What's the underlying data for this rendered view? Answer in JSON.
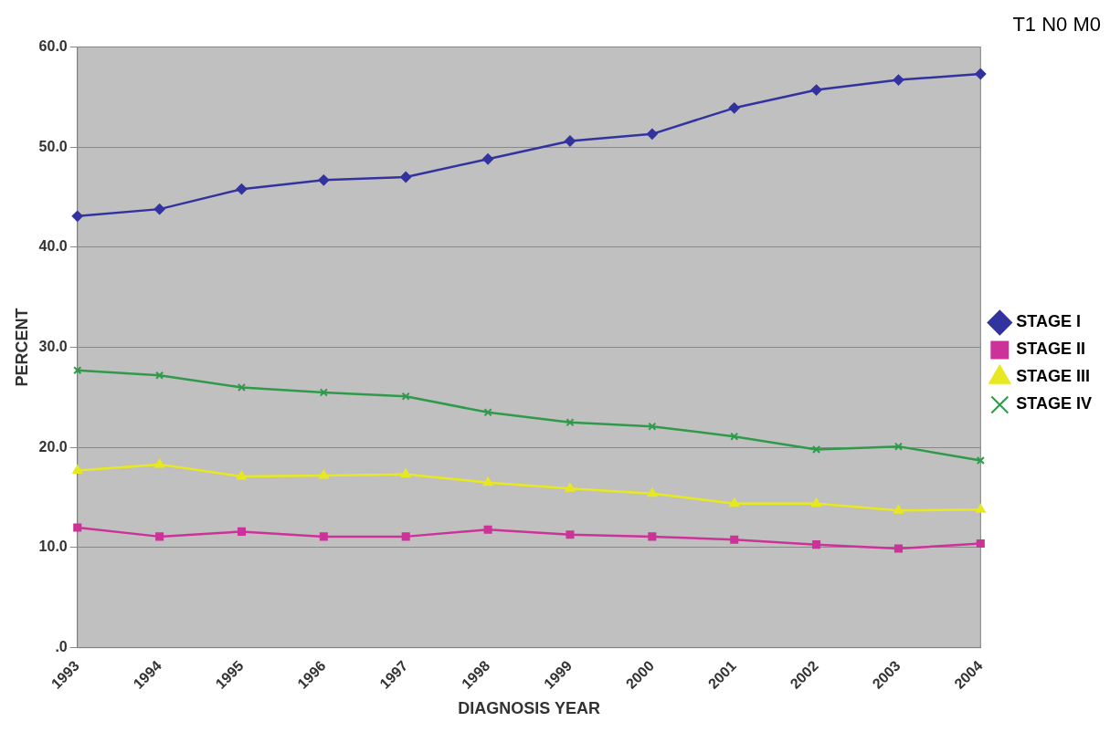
{
  "chart_data": {
    "type": "line",
    "title": "T1 N0 M0",
    "xlabel": "DIAGNOSIS YEAR",
    "ylabel": "PERCENT",
    "categories": [
      "1993",
      "1994",
      "1995",
      "1996",
      "1997",
      "1998",
      "1999",
      "2000",
      "2001",
      "2002",
      "2003",
      "2004"
    ],
    "series": [
      {
        "name": "STAGE I",
        "color": "#3333a0",
        "marker": "diamond",
        "values": [
          43.1,
          43.8,
          45.8,
          46.7,
          47.0,
          48.8,
          50.6,
          51.3,
          53.9,
          55.7,
          56.7,
          57.3
        ]
      },
      {
        "name": "STAGE II",
        "color": "#cc3399",
        "marker": "square",
        "values": [
          12.0,
          11.1,
          11.6,
          11.1,
          11.1,
          11.8,
          11.3,
          11.1,
          10.8,
          10.3,
          9.9,
          10.4
        ]
      },
      {
        "name": "STAGE III",
        "color": "#e8e820",
        "marker": "triangle",
        "values": [
          17.7,
          18.3,
          17.1,
          17.2,
          17.3,
          16.5,
          15.9,
          15.4,
          14.4,
          14.4,
          13.7,
          13.8
        ]
      },
      {
        "name": "STAGE IV",
        "color": "#2e9a4a",
        "marker": "cross",
        "values": [
          27.7,
          27.2,
          26.0,
          25.5,
          25.1,
          23.5,
          22.5,
          22.1,
          21.1,
          19.8,
          20.1,
          18.7
        ]
      }
    ],
    "ylim": [
      0,
      60
    ],
    "yticks": [
      {
        "value": 0,
        "label": ".0"
      },
      {
        "value": 10,
        "label": "10.0"
      },
      {
        "value": 20,
        "label": "20.0"
      },
      {
        "value": 30,
        "label": "30.0"
      },
      {
        "value": 40,
        "label": "40.0"
      },
      {
        "value": 50,
        "label": "50.0"
      },
      {
        "value": 60,
        "label": "60.0"
      }
    ],
    "grid": "y",
    "legend": "right",
    "line_style": "solid"
  }
}
